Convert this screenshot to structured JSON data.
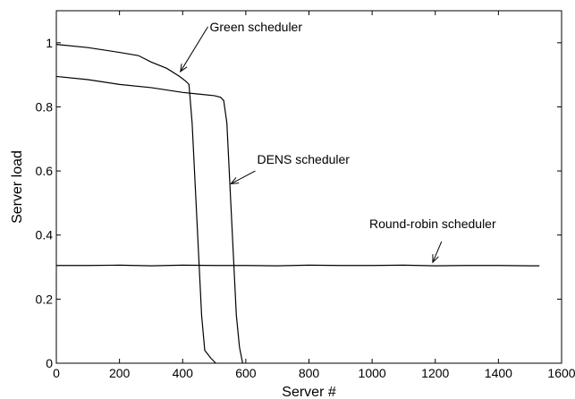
{
  "chart_data": {
    "type": "line",
    "title": "",
    "xlabel": "Server #",
    "ylabel": "Server load",
    "xlim": [
      0,
      1600
    ],
    "ylim": [
      0,
      1.1
    ],
    "xticks": [
      0,
      200,
      400,
      600,
      800,
      1000,
      1200,
      1400,
      1600
    ],
    "xtick_labels": [
      "0",
      "200",
      "400",
      "600",
      "800",
      "1000",
      "1200",
      "1400",
      "1600"
    ],
    "yticks": [
      0,
      0.2,
      0.4,
      0.6,
      0.8,
      1
    ],
    "ytick_labels": [
      "0",
      "0.2",
      "0.4",
      "0.6",
      "0.8",
      "1"
    ],
    "grid": false,
    "legend": "none",
    "line_color": "#000000",
    "series": [
      {
        "x": [
          0,
          100,
          200,
          260,
          300,
          350,
          390,
          410,
          420,
          430,
          440,
          450,
          460,
          470,
          490,
          505
        ],
        "y": [
          0.995,
          0.985,
          0.97,
          0.96,
          0.94,
          0.92,
          0.895,
          0.88,
          0.87,
          0.75,
          0.55,
          0.35,
          0.15,
          0.04,
          0.015,
          0.0
        ]
      },
      {
        "x": [
          0,
          100,
          200,
          300,
          400,
          450,
          500,
          520,
          530,
          540,
          550,
          560,
          570,
          580,
          590
        ],
        "y": [
          0.895,
          0.885,
          0.87,
          0.86,
          0.845,
          0.84,
          0.835,
          0.83,
          0.82,
          0.75,
          0.55,
          0.35,
          0.15,
          0.05,
          0.0
        ]
      },
      {
        "x": [
          0,
          100,
          200,
          300,
          400,
          500,
          600,
          700,
          800,
          900,
          1000,
          1100,
          1200,
          1300,
          1400,
          1500,
          1530
        ],
        "y": [
          0.305,
          0.305,
          0.306,
          0.304,
          0.306,
          0.305,
          0.305,
          0.304,
          0.306,
          0.305,
          0.305,
          0.306,
          0.304,
          0.305,
          0.305,
          0.304,
          0.304
        ]
      }
    ],
    "annotations": [
      {
        "text": "Green scheduler",
        "arrow_from": [
          480,
          1.05
        ],
        "arrow_to": [
          393,
          0.91
        ]
      },
      {
        "text": "DENS scheduler",
        "arrow_from": [
          630,
          0.6
        ],
        "arrow_to": [
          553,
          0.56
        ]
      },
      {
        "text": "Round-robin scheduler",
        "arrow_from": [
          1220,
          0.38
        ],
        "arrow_to": [
          1192,
          0.315
        ]
      }
    ]
  }
}
